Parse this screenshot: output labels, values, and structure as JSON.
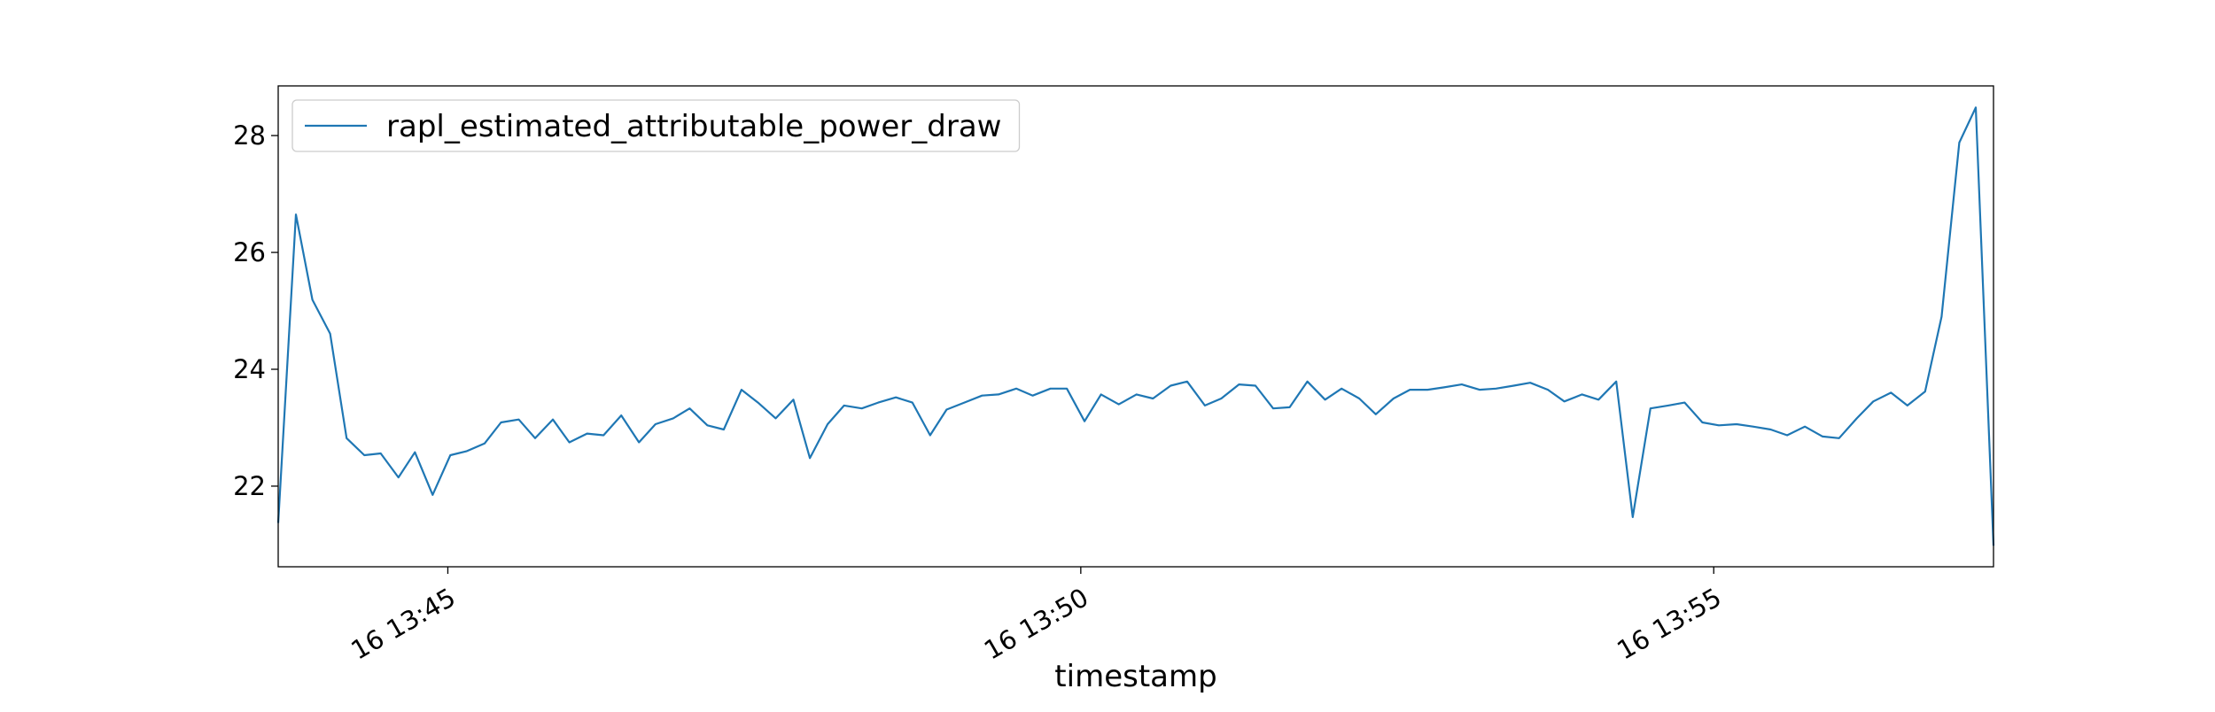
{
  "chart_data": {
    "type": "line",
    "xlabel": "timestamp",
    "x": [
      43.66,
      43.8,
      43.93,
      44.07,
      44.2,
      44.34,
      44.47,
      44.61,
      44.74,
      44.88,
      45.02,
      45.15,
      45.29,
      45.42,
      45.56,
      45.69,
      45.83,
      45.96,
      46.1,
      46.23,
      46.37,
      46.51,
      46.64,
      46.78,
      46.91,
      47.05,
      47.18,
      47.32,
      47.45,
      47.59,
      47.73,
      47.86,
      48.0,
      48.13,
      48.27,
      48.4,
      48.54,
      48.67,
      48.81,
      48.94,
      49.08,
      49.22,
      49.35,
      49.49,
      49.62,
      49.76,
      49.89,
      50.03,
      50.16,
      50.3,
      50.44,
      50.57,
      50.71,
      50.84,
      50.98,
      51.11,
      51.25,
      51.38,
      51.52,
      51.65,
      51.79,
      51.93,
      52.06,
      52.2,
      52.33,
      52.47,
      52.6,
      52.74,
      52.87,
      53.01,
      53.15,
      53.28,
      53.42,
      53.55,
      53.69,
      53.82,
      53.96,
      54.09,
      54.23,
      54.36,
      54.5,
      54.64,
      54.77,
      54.91,
      55.04,
      55.18,
      55.31,
      55.45,
      55.58,
      55.72,
      55.86,
      55.99,
      56.13,
      56.26,
      56.4,
      56.53,
      56.67,
      56.8,
      56.94,
      57.07,
      57.21
    ],
    "series": [
      {
        "name": "rapl_estimated_attributable_power_draw",
        "color": "#1f77b4",
        "values": [
          21.37,
          26.65,
          25.19,
          24.61,
          22.82,
          22.53,
          22.56,
          22.15,
          22.58,
          21.85,
          22.53,
          22.6,
          22.73,
          23.09,
          23.14,
          22.82,
          23.14,
          22.75,
          22.9,
          22.87,
          23.21,
          22.75,
          23.06,
          23.16,
          23.33,
          23.04,
          22.97,
          23.65,
          23.43,
          23.16,
          23.48,
          22.48,
          23.06,
          23.38,
          23.33,
          23.43,
          23.52,
          23.43,
          22.87,
          23.31,
          23.43,
          23.55,
          23.57,
          23.67,
          23.55,
          23.67,
          23.67,
          23.11,
          23.57,
          23.4,
          23.57,
          23.5,
          23.72,
          23.79,
          23.38,
          23.5,
          23.74,
          23.72,
          23.33,
          23.35,
          23.79,
          23.48,
          23.67,
          23.5,
          23.23,
          23.5,
          23.65,
          23.65,
          23.69,
          23.74,
          23.65,
          23.67,
          23.72,
          23.77,
          23.65,
          23.45,
          23.57,
          23.48,
          23.79,
          21.47,
          23.33,
          23.38,
          23.43,
          23.09,
          23.04,
          23.06,
          23.02,
          22.97,
          22.87,
          23.02,
          22.85,
          22.82,
          23.16,
          23.45,
          23.6,
          23.38,
          23.62,
          24.9,
          27.88,
          28.48,
          20.98
        ]
      }
    ],
    "xlim": [
      43.66,
      57.21
    ],
    "xticks": [
      {
        "value": 45,
        "label": "16 13:45"
      },
      {
        "value": 50,
        "label": "16 13:50"
      },
      {
        "value": 55,
        "label": "16 13:55"
      }
    ],
    "ylim": [
      20.62,
      28.85
    ],
    "yticks": [
      22,
      24,
      26,
      28
    ],
    "legend": "upper left",
    "grid": false
  }
}
